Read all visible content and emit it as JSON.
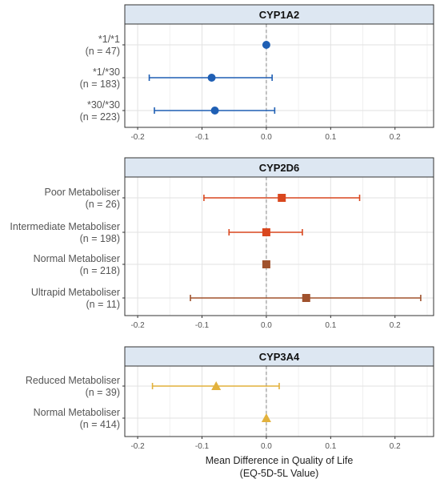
{
  "chart_data": {
    "type": "scatter",
    "subtype": "forest-plot",
    "x_axis": {
      "title_line1": "Mean Difference in Quality of Life",
      "title_line2": "(EQ-5D-5L Value)",
      "ticks": [
        -0.2,
        -0.1,
        0.0,
        0.1,
        0.2
      ],
      "tick_labels": [
        "-0.2",
        "-0.1",
        "0.0",
        "0.1",
        "0.2"
      ],
      "xlim": [
        -0.22,
        0.26
      ],
      "reference_line": 0.0
    },
    "grid": true,
    "legend": "none",
    "panels": [
      {
        "title": "CYP1A2",
        "color": "#1f5fb4",
        "marker": "circle",
        "rows": [
          {
            "label": "*1/*1",
            "n_label": "(n = 47)",
            "estimate": 0.0,
            "ci": null
          },
          {
            "label": "*1/*30",
            "n_label": "(n = 183)",
            "estimate": -0.085,
            "ci": [
              -0.182,
              0.009
            ]
          },
          {
            "label": "*30/*30",
            "n_label": "(n = 223)",
            "estimate": -0.08,
            "ci": [
              -0.174,
              0.013
            ]
          }
        ]
      },
      {
        "title": "CYP2D6",
        "color": "#d9471e",
        "marker": "square",
        "rows": [
          {
            "label": "Poor Metaboliser",
            "n_label": "(n = 26)",
            "estimate": 0.024,
            "ci": [
              -0.097,
              0.145
            ],
            "color": "#d9471e"
          },
          {
            "label": "Intermediate Metaboliser",
            "n_label": "(n = 198)",
            "estimate": 0.0,
            "ci": [
              -0.058,
              0.056
            ],
            "color": "#d9471e"
          },
          {
            "label": "Normal Metaboliser",
            "n_label": "(n = 218)",
            "estimate": 0.0,
            "ci": null,
            "color": "#a0522d"
          },
          {
            "label": "Ultrapid Metaboliser",
            "n_label": "(n = 11)",
            "estimate": 0.062,
            "ci": [
              -0.118,
              0.24
            ],
            "color": "#a0522d"
          }
        ]
      },
      {
        "title": "CYP3A4",
        "color": "#e2b13c",
        "marker": "triangle",
        "rows": [
          {
            "label": "Reduced Metaboliser",
            "n_label": "(n = 39)",
            "estimate": -0.078,
            "ci": [
              -0.177,
              0.02
            ]
          },
          {
            "label": "Normal Metaboliser",
            "n_label": "(n = 414)",
            "estimate": 0.0,
            "ci": null
          }
        ]
      }
    ]
  }
}
